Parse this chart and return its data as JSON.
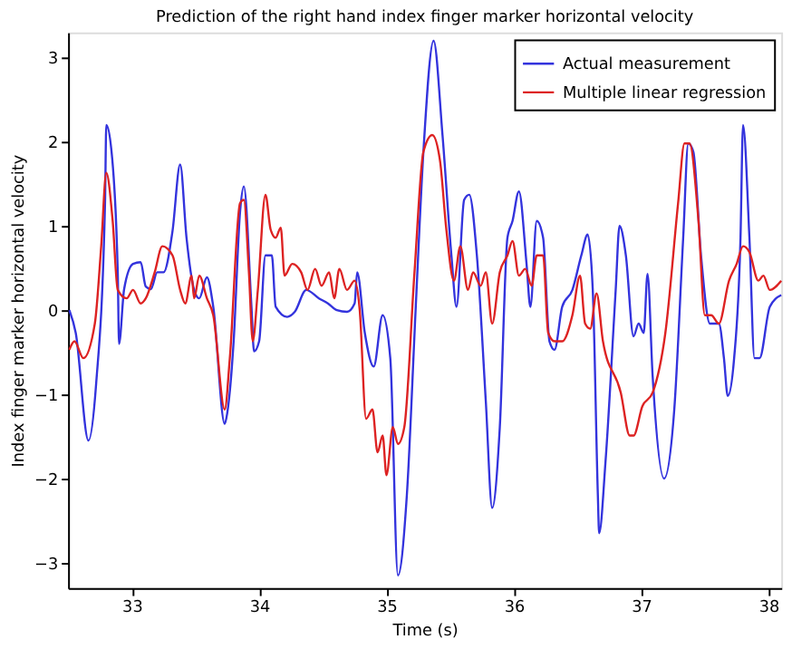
{
  "chart_data": {
    "type": "line",
    "title": "Prediction of the right hand index finger marker horizontal velocity",
    "xlabel": "Time (s)",
    "ylabel": "Index finger marker horizontal velocity",
    "xlim": [
      32.5,
      38.1
    ],
    "ylim": [
      -3.3,
      3.3
    ],
    "xticks": [
      33,
      34,
      35,
      36,
      37,
      38
    ],
    "yticks": [
      -3,
      -2,
      -1,
      0,
      1,
      2,
      3
    ],
    "grid": false,
    "legend": "top right",
    "line_style": "solid",
    "marker": "none",
    "series": [
      {
        "name": "Actual measurement",
        "color": "#3333dd",
        "x": [
          32.51,
          32.56,
          32.66,
          32.72,
          32.79,
          32.8,
          32.84,
          32.89,
          32.9,
          32.94,
          33.01,
          33.07,
          33.11,
          33.15,
          33.2,
          33.25,
          33.32,
          33.38,
          33.43,
          33.49,
          33.53,
          33.59,
          33.64,
          33.73,
          33.75,
          33.8,
          33.85,
          33.88,
          33.94,
          33.96,
          34.0,
          34.05,
          34.1,
          34.13,
          34.22,
          34.28,
          34.37,
          34.47,
          34.54,
          34.61,
          34.69,
          34.75,
          34.77,
          34.83,
          34.9,
          34.97,
          35.03,
          35.09,
          35.16,
          35.23,
          35.29,
          35.37,
          35.44,
          35.51,
          35.55,
          35.61,
          35.65,
          35.71,
          35.78,
          35.83,
          35.89,
          35.95,
          35.99,
          36.04,
          36.1,
          36.13,
          36.18,
          36.23,
          36.28,
          36.32,
          36.38,
          36.46,
          36.53,
          36.58,
          36.62,
          36.66,
          36.67,
          36.72,
          36.8,
          36.83,
          36.88,
          36.94,
          36.98,
          37.02,
          37.05,
          37.09,
          37.18,
          37.26,
          37.33,
          37.37,
          37.41,
          37.47,
          37.54,
          37.61,
          37.65,
          37.68,
          37.73,
          37.78,
          37.8,
          37.85,
          37.89,
          37.93,
          38.01,
          38.1
        ],
        "values": [
          0,
          -0.27,
          -1.55,
          -0.88,
          1.27,
          2.2,
          1.9,
          0.45,
          -0.4,
          0.25,
          0.55,
          0.57,
          0.28,
          0.25,
          0.45,
          0.45,
          0.94,
          1.73,
          0.86,
          0.24,
          0.14,
          0.39,
          0.04,
          -1.35,
          -1.22,
          -0.37,
          1.16,
          1.47,
          0.04,
          -0.49,
          -0.37,
          0.65,
          0.65,
          0.04,
          -0.08,
          -0.02,
          0.24,
          0.14,
          0.08,
          0,
          -0.02,
          0.08,
          0.45,
          -0.27,
          -0.67,
          -0.06,
          -0.57,
          -3.15,
          -2.2,
          0.04,
          1.88,
          3.2,
          2.08,
          0.65,
          0.04,
          1.31,
          1.37,
          0.65,
          -1.08,
          -2.35,
          -1.39,
          0.86,
          1.06,
          1.41,
          0.55,
          0.04,
          1.06,
          0.86,
          -0.37,
          -0.47,
          0.04,
          0.24,
          0.65,
          0.9,
          0.24,
          -2.2,
          -2.65,
          -1.8,
          0.24,
          1.0,
          0.65,
          -0.31,
          -0.16,
          -0.27,
          0.43,
          -0.78,
          -2.0,
          -1.18,
          0.86,
          1.98,
          1.88,
          0.65,
          -0.16,
          -0.16,
          -0.57,
          -1.02,
          -0.57,
          0.86,
          2.2,
          0.86,
          -0.57,
          -0.57,
          0.04,
          0.18
        ]
      },
      {
        "name": "Multiple linear regression",
        "color": "#dd2222",
        "x": [
          32.51,
          32.55,
          32.62,
          32.71,
          32.76,
          32.8,
          32.85,
          32.89,
          32.96,
          33.01,
          33.07,
          33.11,
          33.18,
          33.24,
          33.32,
          33.38,
          33.42,
          33.47,
          33.49,
          33.53,
          33.59,
          33.64,
          33.73,
          33.77,
          33.85,
          33.88,
          33.92,
          33.95,
          33.99,
          34.05,
          34.09,
          34.13,
          34.17,
          34.2,
          34.26,
          34.33,
          34.38,
          34.44,
          34.49,
          34.55,
          34.59,
          34.63,
          34.69,
          34.75,
          34.79,
          34.84,
          34.89,
          34.93,
          34.97,
          35.0,
          35.05,
          35.09,
          35.14,
          35.22,
          35.29,
          35.36,
          35.42,
          35.47,
          35.53,
          35.58,
          35.64,
          35.68,
          35.74,
          35.78,
          35.83,
          35.89,
          35.95,
          35.99,
          36.04,
          36.09,
          36.14,
          36.18,
          36.23,
          36.27,
          36.32,
          36.38,
          36.46,
          36.52,
          36.56,
          36.6,
          36.65,
          36.7,
          36.84,
          36.91,
          36.94,
          37.01,
          37.09,
          37.19,
          37.29,
          37.34,
          37.38,
          37.45,
          37.5,
          37.55,
          37.61,
          37.69,
          37.75,
          37.8,
          37.85,
          37.92,
          37.96,
          38.01,
          38.1
        ],
        "values": [
          -0.47,
          -0.37,
          -0.57,
          -0.16,
          0.76,
          1.63,
          1.06,
          0.24,
          0.14,
          0.24,
          0.08,
          0.14,
          0.45,
          0.76,
          0.65,
          0.24,
          0.08,
          0.41,
          0.14,
          0.41,
          0.14,
          -0.06,
          -1.18,
          -0.57,
          1.27,
          1.31,
          0.45,
          -0.37,
          0.24,
          1.37,
          0.96,
          0.86,
          0.98,
          0.41,
          0.55,
          0.45,
          0.24,
          0.49,
          0.29,
          0.45,
          0.14,
          0.49,
          0.24,
          0.35,
          0,
          -1.29,
          -1.18,
          -1.69,
          -1.49,
          -1.96,
          -1.39,
          -1.59,
          -1.39,
          0.45,
          1.88,
          2.08,
          1.78,
          0.96,
          0.35,
          0.76,
          0.24,
          0.45,
          0.29,
          0.45,
          -0.16,
          0.45,
          0.65,
          0.82,
          0.41,
          0.49,
          0.29,
          0.65,
          0.65,
          -0.27,
          -0.37,
          -0.37,
          -0.06,
          0.41,
          -0.16,
          -0.22,
          0.2,
          -0.37,
          -0.98,
          -1.49,
          -1.49,
          -1.14,
          -0.98,
          -0.27,
          1.27,
          1.98,
          1.98,
          1.06,
          -0.06,
          -0.06,
          -0.16,
          0.35,
          0.55,
          0.76,
          0.69,
          0.35,
          0.41,
          0.24,
          0.35
        ]
      }
    ]
  }
}
